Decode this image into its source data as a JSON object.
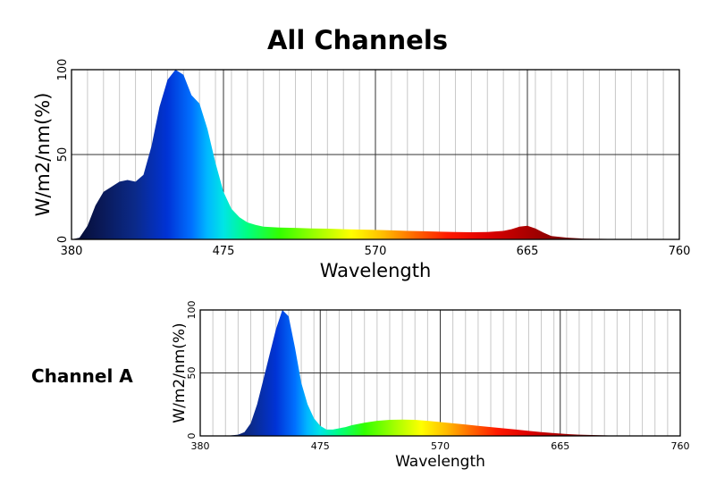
{
  "chart_data": [
    {
      "type": "area",
      "title": "All Channels",
      "xlabel": "Wavelength",
      "ylabel": "W/m2/nm(%)",
      "xlim": [
        380,
        760
      ],
      "ylim": [
        0,
        100
      ],
      "x_ticks": [
        380,
        475,
        570,
        665,
        760
      ],
      "x_tick_labels": [
        "380",
        "475",
        "570",
        "665",
        "760"
      ],
      "y_ticks": [
        0,
        50,
        100
      ],
      "y_tick_labels": [
        "0",
        "50",
        "100"
      ],
      "grid": true,
      "series": [
        {
          "name": "All Channels",
          "x": [
            380,
            385,
            390,
            395,
            400,
            405,
            410,
            415,
            420,
            425,
            430,
            435,
            440,
            445,
            450,
            455,
            460,
            465,
            470,
            475,
            480,
            485,
            490,
            495,
            500,
            510,
            520,
            530,
            540,
            550,
            560,
            570,
            580,
            590,
            600,
            610,
            620,
            630,
            640,
            650,
            655,
            660,
            665,
            670,
            675,
            680,
            690,
            700,
            720,
            740,
            760
          ],
          "values": [
            0,
            1,
            8,
            20,
            28,
            31,
            34,
            35,
            34,
            38,
            55,
            78,
            94,
            100,
            97,
            85,
            80,
            65,
            45,
            28,
            18,
            13,
            10,
            8.5,
            7.5,
            7,
            6.8,
            6.5,
            6.3,
            6,
            5.8,
            5.6,
            5.3,
            5,
            4.8,
            4.5,
            4.3,
            4.2,
            4.3,
            5,
            6,
            7.5,
            8,
            6.5,
            4,
            2,
            1,
            0.5,
            0.2,
            0,
            0
          ]
        }
      ]
    },
    {
      "type": "area",
      "title": "Channel A",
      "xlabel": "Wavelength",
      "ylabel": "W/m2/nm(%)",
      "xlim": [
        380,
        760
      ],
      "ylim": [
        0,
        100
      ],
      "x_ticks": [
        380,
        475,
        570,
        665,
        760
      ],
      "x_tick_labels": [
        "380",
        "475",
        "570",
        "665",
        "760"
      ],
      "y_ticks": [
        0,
        50,
        100
      ],
      "y_tick_labels": [
        "0",
        "50",
        "100"
      ],
      "grid": true,
      "series": [
        {
          "name": "Channel A",
          "x": [
            380,
            400,
            410,
            415,
            420,
            425,
            430,
            435,
            440,
            445,
            450,
            455,
            460,
            465,
            470,
            475,
            480,
            485,
            490,
            495,
            500,
            510,
            520,
            530,
            540,
            550,
            560,
            570,
            580,
            590,
            600,
            610,
            620,
            630,
            640,
            650,
            660,
            670,
            680,
            690,
            700,
            710,
            720,
            740,
            760
          ],
          "values": [
            0,
            0,
            1,
            3,
            10,
            25,
            45,
            65,
            85,
            100,
            95,
            70,
            42,
            25,
            14,
            8,
            5,
            5,
            6,
            7,
            8.5,
            10.5,
            12,
            12.8,
            13,
            12.8,
            12,
            11,
            10,
            9,
            8,
            7,
            6,
            5,
            4,
            3,
            2.2,
            1.5,
            1,
            0.7,
            0.4,
            0.2,
            0.1,
            0,
            0
          ]
        }
      ]
    }
  ]
}
